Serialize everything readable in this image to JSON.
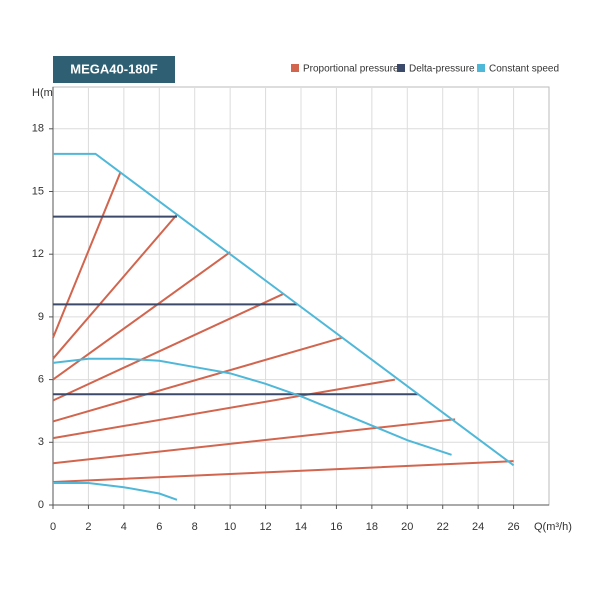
{
  "chart_data": {
    "type": "line",
    "title": "MEGA40-180F",
    "xlabel": "Q(m³/h)",
    "ylabel": "H(m)",
    "xlim": [
      0,
      28
    ],
    "xticks": [
      0,
      2,
      4,
      6,
      8,
      10,
      12,
      14,
      16,
      18,
      20,
      22,
      24,
      26
    ],
    "ylim": [
      0,
      20
    ],
    "yticks": [
      0,
      3,
      6,
      9,
      12,
      15,
      18
    ],
    "grid": true,
    "legend": "top-right",
    "series": [
      {
        "name": "Proportional pressure",
        "color": "#d2654e",
        "x": [
          0,
          3.8,
          null,
          0,
          7.0,
          null,
          0,
          10.0,
          null,
          0,
          13.0,
          null,
          0,
          16.3,
          null,
          0,
          19.3,
          null,
          0,
          22.7,
          null,
          0,
          26.0
        ],
        "values": [
          8.0,
          15.9,
          null,
          7.0,
          13.9,
          null,
          6.0,
          12.1,
          null,
          5.0,
          10.1,
          null,
          4.0,
          8.0,
          null,
          3.2,
          6.0,
          null,
          2.0,
          4.1,
          null,
          1.1,
          2.1
        ]
      },
      {
        "name": "Delta-pressure",
        "color": "#3b4a6b",
        "x": [
          0,
          7.0,
          null,
          0,
          13.8,
          null,
          0,
          20.6
        ],
        "values": [
          13.8,
          13.8,
          null,
          9.6,
          9.6,
          null,
          5.3,
          5.3
        ]
      },
      {
        "name": "Constant speed",
        "color": "#4fb8d8",
        "x": [
          0,
          2.4,
          26.0,
          null,
          0,
          2,
          4,
          6,
          8,
          10,
          12,
          14,
          16,
          18,
          20,
          22.5,
          null,
          0,
          2,
          4,
          6,
          7
        ],
        "values": [
          16.8,
          16.8,
          1.9,
          null,
          6.8,
          7.0,
          7.0,
          6.9,
          6.6,
          6.3,
          5.8,
          5.2,
          4.5,
          3.8,
          3.1,
          2.4,
          null,
          1.05,
          1.05,
          0.85,
          0.55,
          0.25
        ]
      }
    ]
  }
}
